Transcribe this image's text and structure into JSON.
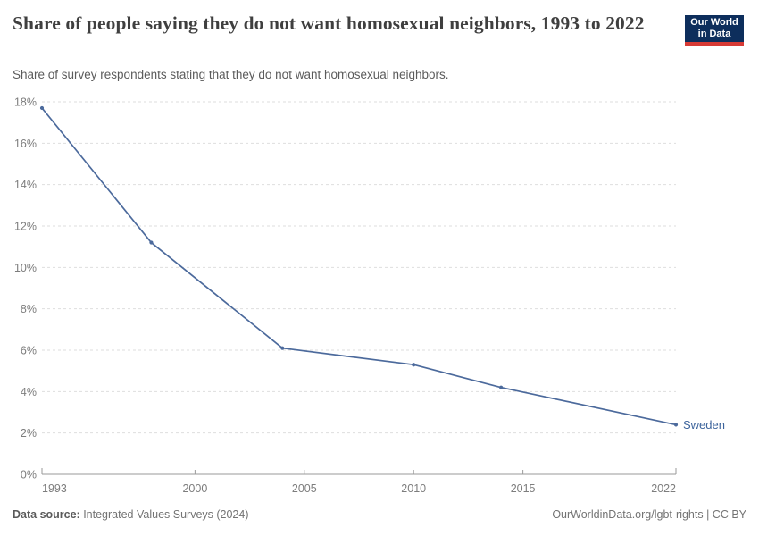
{
  "chart_data": {
    "type": "line",
    "title": "Share of people saying they do not want homosexual neighbors, 1993 to 2022",
    "subtitle": "Share of survey respondents stating that they do not want homosexual neighbors.",
    "series": [
      {
        "name": "Sweden",
        "color": "#4c6a9c",
        "label_color": "#3d649c",
        "x": [
          1993,
          1998,
          2004,
          2010,
          2014,
          2022
        ],
        "y": [
          17.7,
          11.2,
          6.1,
          5.3,
          4.2,
          2.4
        ]
      }
    ],
    "xlim": [
      1993,
      2022
    ],
    "ylim": [
      0,
      18
    ],
    "xticks": [
      1993,
      2000,
      2005,
      2010,
      2015,
      2022
    ],
    "yticks": [
      0,
      2,
      4,
      6,
      8,
      10,
      12,
      14,
      16,
      18
    ],
    "ytick_suffix": "%",
    "grid": "horizontal-dashed",
    "legend_position": "end-of-line-label",
    "grid_color": "#dedede",
    "axis_color": "#9a9a9a",
    "tick_label_color": "#7d7d7d"
  },
  "logo": {
    "line1": "Our World",
    "line2": "in Data"
  },
  "footer": {
    "datasource_label": "Data source:",
    "datasource_value": " Integrated Values Surveys (2024)",
    "credit": "OurWorldinData.org/lgbt-rights | CC BY"
  }
}
